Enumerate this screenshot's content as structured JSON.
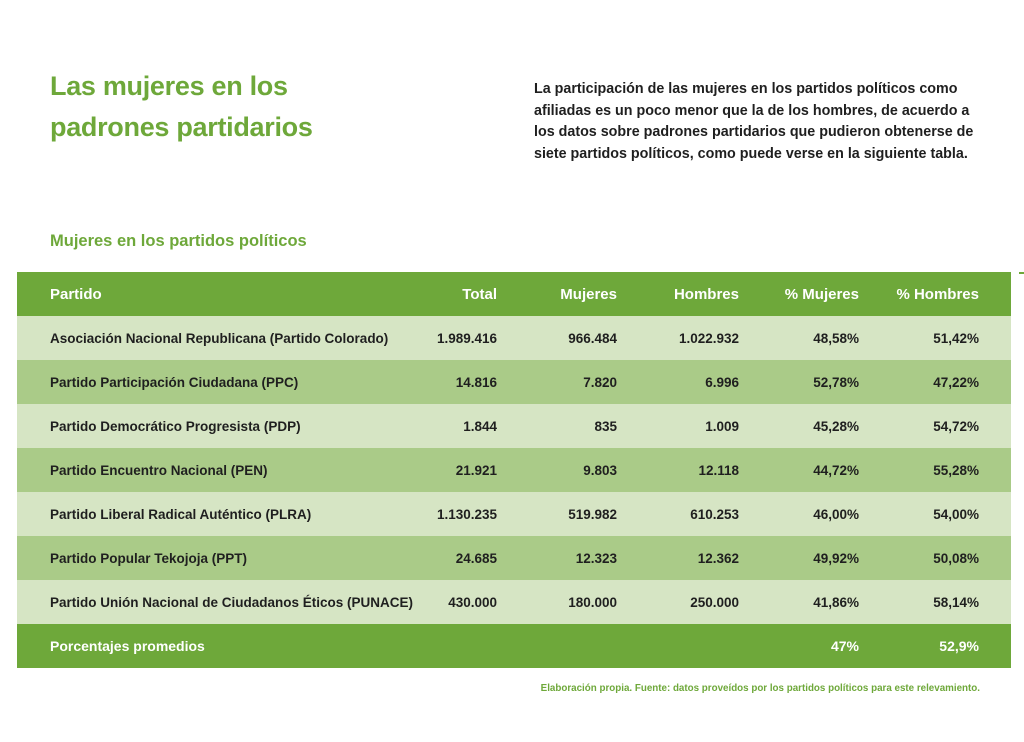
{
  "title_line1": "Las mujeres en los",
  "title_line2": "padrones partidarios",
  "intro": "La participación de las mujeres en los partidos políticos como afiliadas es un poco menor que la de los hombres, de acuerdo a los datos sobre padrones partidarios que pudieron obtenerse de siete partidos políticos, como puede verse en la siguiente tabla.",
  "table_heading": "Mujeres en los partidos políticos",
  "colors": {
    "accent": "#6ea83a",
    "row_light": "#d6e5c4",
    "row_dark": "#aacb88"
  },
  "table": {
    "headers": {
      "partido": "Partido",
      "total": "Total",
      "mujeres": "Mujeres",
      "hombres": "Hombres",
      "pct_mujeres": "% Mujeres",
      "pct_hombres": "% Hombres"
    },
    "rows": [
      {
        "partido": "Asociación Nacional Republicana (Partido Colorado)",
        "total": "1.989.416",
        "mujeres": "966.484",
        "hombres": "1.022.932",
        "pct_mujeres": "48,58%",
        "pct_hombres": "51,42%"
      },
      {
        "partido": "Partido Participación Ciudadana (PPC)",
        "total": "14.816",
        "mujeres": "7.820",
        "hombres": "6.996",
        "pct_mujeres": "52,78%",
        "pct_hombres": "47,22%"
      },
      {
        "partido": "Partido Democrático Progresista (PDP)",
        "total": "1.844",
        "mujeres": "835",
        "hombres": "1.009",
        "pct_mujeres": "45,28%",
        "pct_hombres": "54,72%"
      },
      {
        "partido": "Partido Encuentro Nacional (PEN)",
        "total": "21.921",
        "mujeres": "9.803",
        "hombres": "12.118",
        "pct_mujeres": "44,72%",
        "pct_hombres": "55,28%"
      },
      {
        "partido": "Partido Liberal Radical Auténtico (PLRA)",
        "total": "1.130.235",
        "mujeres": "519.982",
        "hombres": "610.253",
        "pct_mujeres": "46,00%",
        "pct_hombres": "54,00%"
      },
      {
        "partido": "Partido Popular Tekojoja (PPT)",
        "total": "24.685",
        "mujeres": "12.323",
        "hombres": "12.362",
        "pct_mujeres": "49,92%",
        "pct_hombres": "50,08%"
      },
      {
        "partido": "Partido Unión Nacional de Ciudadanos Éticos (PUNACE)",
        "total": "430.000",
        "mujeres": "180.000",
        "hombres": "250.000",
        "pct_mujeres": "41,86%",
        "pct_hombres": "58,14%"
      }
    ],
    "footer": {
      "label": "Porcentajes promedios",
      "pct_mujeres": "47%",
      "pct_hombres": "52,9%"
    }
  },
  "source": "Elaboración propia. Fuente: datos proveídos por los partidos políticos para este relevamiento."
}
